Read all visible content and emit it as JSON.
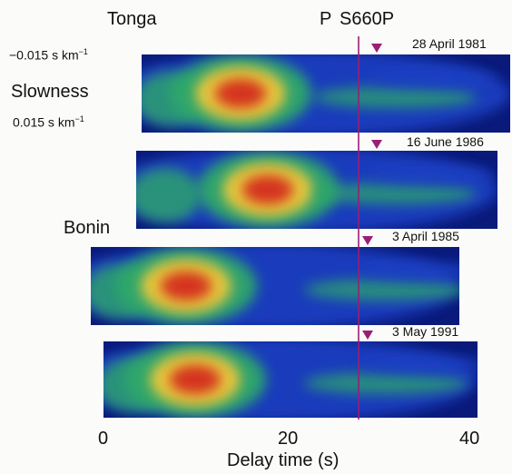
{
  "chart_data": {
    "type": "heatmap",
    "title": "",
    "xlabel": "Delay time (s)",
    "x_ticks": [
      0,
      20,
      40
    ],
    "xlim": [
      0,
      40
    ],
    "group_labels": [
      "Tonga",
      "Bonin"
    ],
    "marker_labels": [
      "P",
      "S660P"
    ],
    "y_axis": {
      "label": "Slowness",
      "top_tick": "−0.015 s km",
      "bottom_tick": "0.015 s km",
      "unit_exponent": "−1"
    },
    "panels": [
      {
        "group": "Tonga",
        "date": "28 April 1981",
        "peak_delay_s": 15,
        "arrival_s": 30
      },
      {
        "group": "Tonga",
        "date": "16 June 1986",
        "peak_delay_s": 18,
        "arrival_s": 30
      },
      {
        "group": "Bonin",
        "date": "3 April 1985",
        "peak_delay_s": 9,
        "arrival_s": 29
      },
      {
        "group": "Bonin",
        "date": "3 May 1991",
        "peak_delay_s": 10,
        "arrival_s": 29
      }
    ],
    "line_delay_s": 28,
    "colors": {
      "background": "#0a1a7a",
      "low": "#1a3fc4",
      "mid": "#2ea86a",
      "high": "#f0c93a",
      "peak": "#d42a1a",
      "marker": "#9a1f74"
    }
  }
}
